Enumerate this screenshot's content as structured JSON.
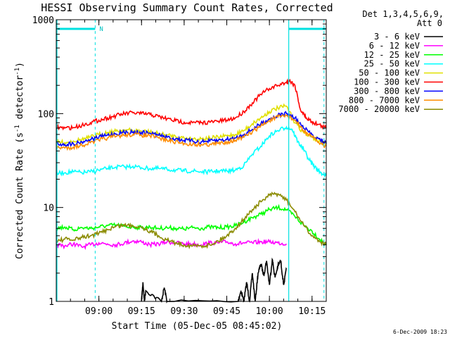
{
  "chart_data": {
    "type": "line",
    "title": "HESSI Observing Summary Count Rates, Corrected",
    "xlabel": "Start Time (05-Dec-05 08:45:02)",
    "ylabel": "Corrected Count Rate (s",
    "ylabel_sup1": "-1",
    "ylabel_mid": " detector",
    "ylabel_sup2": "-1",
    "ylabel_end": ")",
    "yscale": "log",
    "ylim": [
      1,
      1000
    ],
    "xlim_minutes": [
      0,
      95
    ],
    "x_ticks": [
      {
        "label": "09:00",
        "min": 15
      },
      {
        "label": "09:15",
        "min": 30
      },
      {
        "label": "09:30",
        "min": 45
      },
      {
        "label": "09:45",
        "min": 60
      },
      {
        "label": "10:00",
        "min": 75
      },
      {
        "label": "10:15",
        "min": 90
      }
    ],
    "y_ticks": [
      {
        "label": "1",
        "value": 1
      },
      {
        "label": "10",
        "value": 10
      },
      {
        "label": "100",
        "value": 100
      },
      {
        "label": "1000",
        "value": 1000
      }
    ],
    "legend_header": [
      "Det 1,3,4,5,6,9,",
      "Att 0"
    ],
    "legend_placement": "right",
    "timestamp": "6-Dec-2009 18:23",
    "night_marker": "N",
    "dashed_lines_minutes": [
      13.7,
      94.2
    ],
    "saa_lines_minutes": [
      81.8
    ],
    "series": [
      {
        "name": "3 - 6 keV",
        "color": "#000000",
        "x": [
          30,
          30.5,
          31,
          31.5,
          37,
          38,
          39,
          64,
          65,
          66,
          67,
          68,
          69,
          70,
          71,
          72,
          73,
          74,
          75,
          76,
          77,
          78,
          79,
          80,
          81
        ],
        "y": [
          1,
          1.6,
          1,
          1.3,
          1,
          1.4,
          1,
          1,
          1.3,
          1,
          1.6,
          1,
          2,
          1,
          2,
          2.5,
          1.9,
          2.7,
          1.5,
          2.8,
          1.8,
          2.4,
          2.7,
          1.5,
          2.2
        ]
      },
      {
        "name": "6 - 12 keV",
        "color": "#ff00ff",
        "x": [
          0,
          3,
          6,
          9,
          12,
          15,
          18,
          21,
          24,
          27,
          30,
          33,
          36,
          39,
          42,
          45,
          48,
          51,
          54,
          57,
          60,
          63,
          66,
          69,
          72,
          75,
          78,
          81
        ],
        "y": [
          4,
          3.9,
          4.1,
          3.8,
          4,
          4.2,
          4.1,
          4,
          4.2,
          4.4,
          4.3,
          4,
          4.1,
          4.3,
          4.2,
          4.1,
          4.1,
          4,
          4.2,
          4.2,
          4.3,
          4.1,
          4.2,
          4.2,
          4.3,
          4.3,
          4.2,
          4.1
        ]
      },
      {
        "name": "12 - 25 keV",
        "color": "#00ff00",
        "x": [
          0,
          3,
          6,
          9,
          12,
          15,
          18,
          21,
          24,
          27,
          30,
          33,
          36,
          39,
          42,
          45,
          48,
          51,
          54,
          57,
          60,
          63,
          66,
          69,
          72,
          75,
          78,
          81,
          84,
          87,
          90,
          93,
          95
        ],
        "y": [
          6,
          6.2,
          5.8,
          6.1,
          6,
          6.2,
          6.4,
          6.5,
          6.3,
          6.2,
          6.1,
          6.2,
          6,
          6.1,
          6,
          5.9,
          6.1,
          6,
          6.2,
          6.1,
          6.2,
          6.4,
          7,
          7.8,
          8.5,
          9.5,
          10,
          9.5,
          8,
          6.5,
          5.6,
          4.5,
          4
        ]
      },
      {
        "name": "25 - 50 keV",
        "color": "#00ffff",
        "x": [
          0,
          3,
          6,
          9,
          12,
          15,
          18,
          21,
          24,
          27,
          30,
          33,
          36,
          39,
          42,
          45,
          48,
          51,
          54,
          57,
          60,
          63,
          66,
          69,
          72,
          75,
          78,
          81,
          83,
          85,
          87,
          89,
          91,
          93,
          95
        ],
        "y": [
          23,
          23.5,
          24,
          23.5,
          24,
          25,
          26,
          27,
          27,
          27.5,
          26.5,
          26,
          26,
          25.5,
          25,
          24.5,
          24.5,
          24,
          24,
          24.5,
          24.5,
          25,
          28,
          37,
          45,
          58,
          66,
          72,
          68,
          50,
          42,
          32,
          27,
          23.5,
          22
        ]
      },
      {
        "name": "50 - 100 keV",
        "color": "#e0e000",
        "x": [
          0,
          3,
          6,
          9,
          12,
          15,
          18,
          21,
          24,
          27,
          30,
          33,
          36,
          39,
          42,
          45,
          48,
          51,
          54,
          57,
          60,
          63,
          66,
          69,
          72,
          75,
          78,
          81,
          84,
          87,
          90,
          93,
          95
        ],
        "y": [
          50,
          49,
          51,
          53,
          56,
          60,
          63,
          65,
          67,
          66,
          65,
          64,
          61,
          59,
          57,
          55,
          54,
          54,
          55,
          56,
          58,
          60,
          66,
          78,
          90,
          105,
          115,
          120,
          80,
          63,
          56,
          50,
          46
        ]
      },
      {
        "name": "100 - 300 keV",
        "color": "#ff0000",
        "x": [
          0,
          3,
          6,
          9,
          12,
          15,
          18,
          21,
          24,
          27,
          30,
          33,
          36,
          39,
          42,
          45,
          48,
          51,
          54,
          57,
          60,
          63,
          66,
          69,
          72,
          75,
          78,
          81,
          82,
          84,
          86,
          88,
          90,
          92,
          95
        ],
        "y": [
          72,
          70,
          71,
          75,
          80,
          85,
          90,
          95,
          100,
          102,
          100,
          98,
          93,
          88,
          84,
          81,
          80,
          80,
          81,
          83,
          85,
          90,
          105,
          130,
          160,
          185,
          200,
          215,
          225,
          200,
          108,
          90,
          82,
          77,
          70
        ]
      },
      {
        "name": "300 - 800 keV",
        "color": "#0000ff",
        "x": [
          0,
          3,
          6,
          9,
          12,
          15,
          18,
          21,
          24,
          27,
          30,
          33,
          36,
          39,
          42,
          45,
          48,
          51,
          54,
          57,
          60,
          63,
          66,
          69,
          72,
          75,
          78,
          81,
          84,
          87,
          90,
          93,
          95
        ],
        "y": [
          48,
          47,
          48,
          50,
          53,
          56,
          59,
          61,
          63,
          64,
          63,
          62,
          59,
          56,
          54,
          52,
          51,
          50,
          51,
          52,
          53,
          55,
          60,
          68,
          78,
          88,
          96,
          100,
          90,
          70,
          60,
          52,
          48
        ]
      },
      {
        "name": "800 - 7000 keV",
        "color": "#ff8c00",
        "x": [
          0,
          3,
          6,
          9,
          12,
          15,
          18,
          21,
          24,
          27,
          30,
          33,
          36,
          39,
          42,
          45,
          48,
          51,
          54,
          57,
          60,
          63,
          66,
          69,
          72,
          75,
          78,
          81,
          84,
          87,
          90,
          93,
          95
        ],
        "y": [
          44,
          43,
          44,
          46,
          49,
          52,
          55,
          57,
          59,
          60,
          59,
          58,
          55,
          52,
          50,
          48,
          47,
          47,
          47,
          48,
          50,
          52,
          56,
          64,
          74,
          84,
          92,
          96,
          85,
          66,
          56,
          48,
          45
        ]
      },
      {
        "name": "7000 - 20000 keV",
        "color": "#8b8b00",
        "x": [
          0,
          3,
          6,
          9,
          12,
          15,
          18,
          21,
          24,
          27,
          30,
          33,
          36,
          39,
          42,
          45,
          48,
          51,
          54,
          57,
          60,
          63,
          66,
          69,
          72,
          75,
          78,
          81,
          84,
          87,
          90,
          93,
          95
        ],
        "y": [
          4.4,
          4.6,
          4.5,
          4.8,
          5,
          5.3,
          5.8,
          6.3,
          6.5,
          6.4,
          6.2,
          5.6,
          5,
          4.5,
          4.2,
          4,
          3.9,
          3.9,
          4,
          4.4,
          5,
          6,
          7.5,
          9.5,
          11.5,
          13.5,
          14,
          12,
          9,
          6.5,
          5,
          4.3,
          4
        ]
      }
    ]
  }
}
